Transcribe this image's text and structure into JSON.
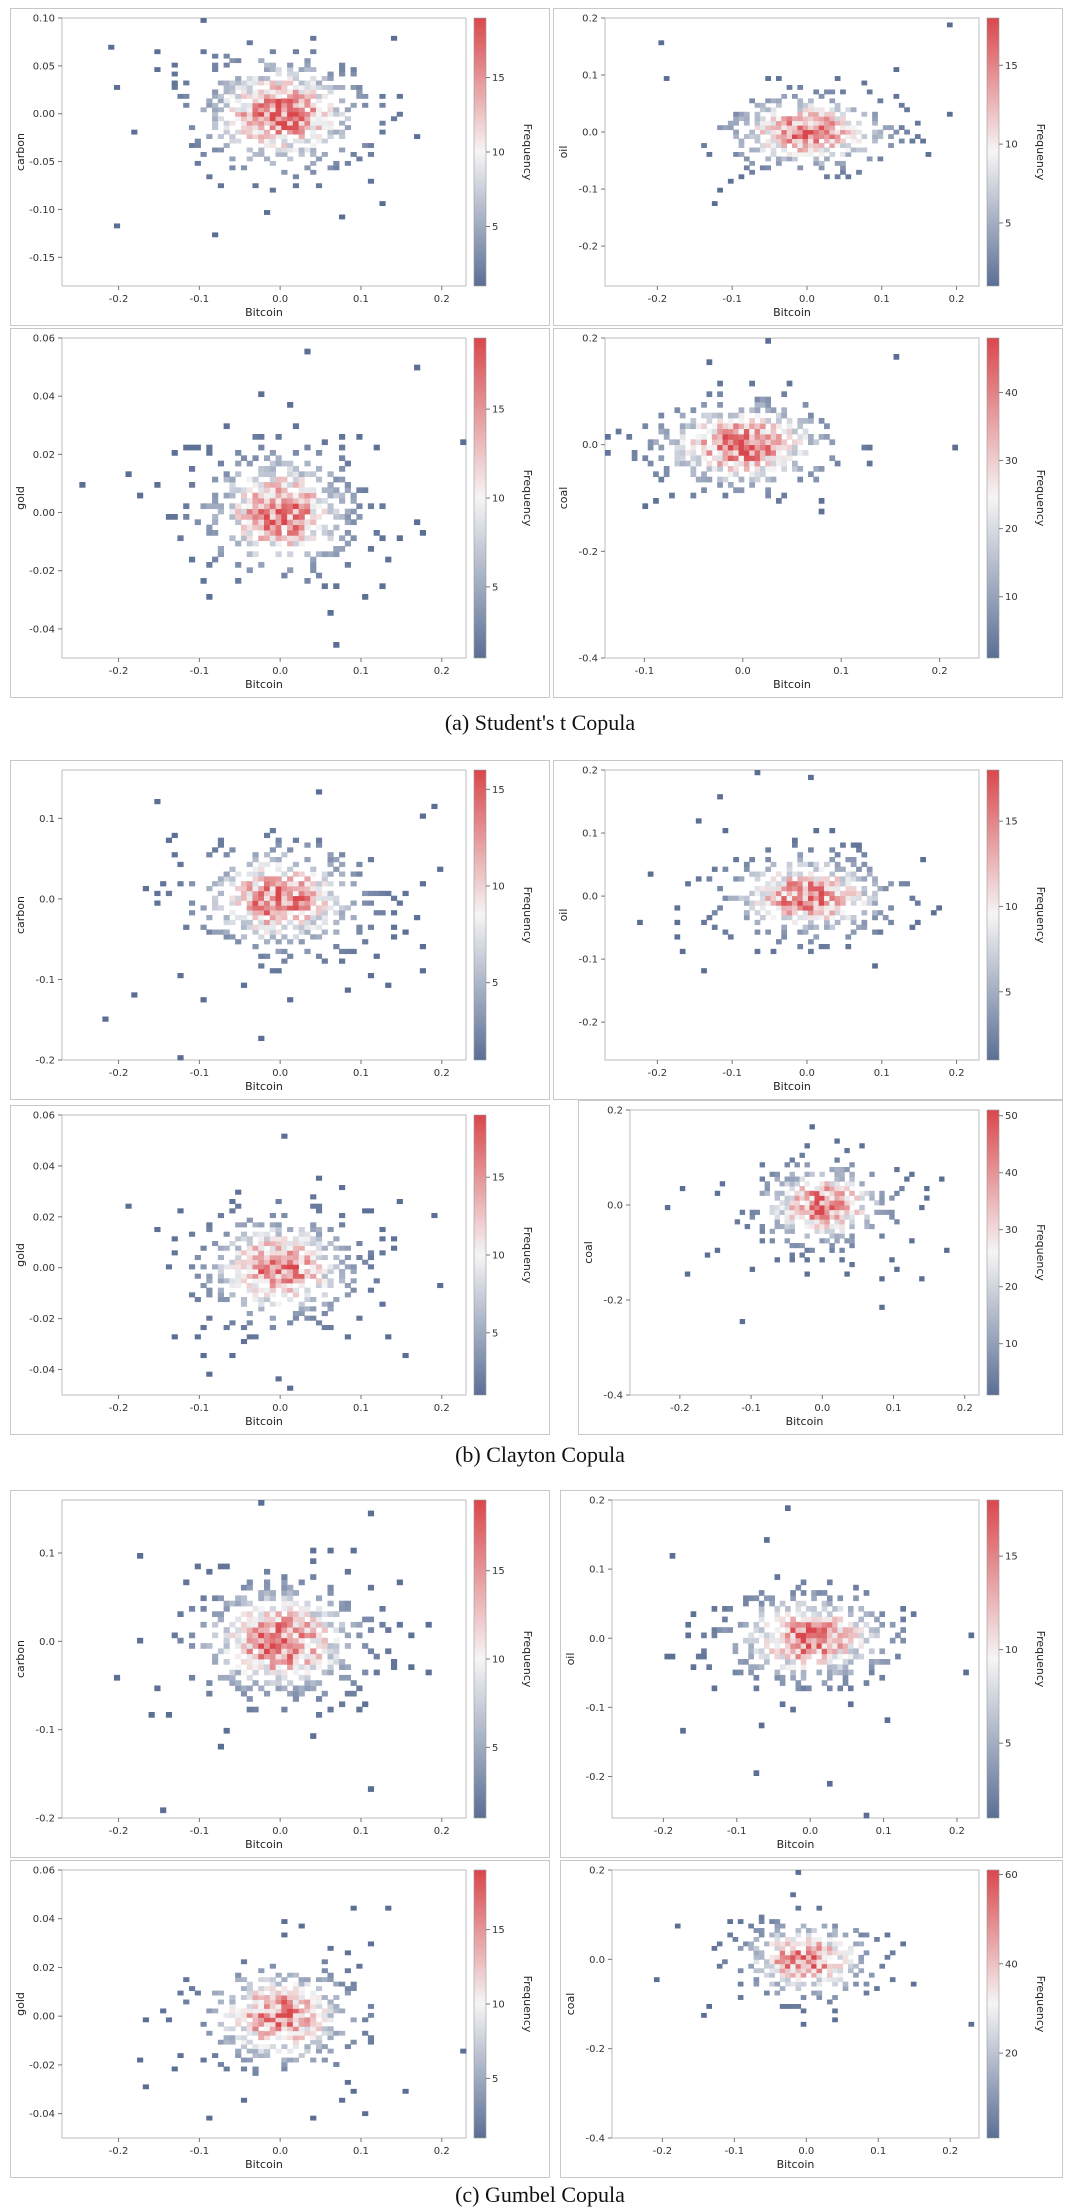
{
  "captions": {
    "a": "(a) Student's t Copula",
    "b": "(b) Clayton Copula",
    "c": "(c) Gumbel Copula"
  },
  "colors": {
    "low": "#5b6f95",
    "mid": "#f5f5f5",
    "high": "#d9474c"
  },
  "chart_data": [
    {
      "type": "heatmap",
      "group": "a",
      "xlabel": "Bitcoin",
      "ylabel": "carbon",
      "xlim": [
        -0.27,
        0.23
      ],
      "ylim": [
        -0.18,
        0.1
      ],
      "xticks": [
        "-0.2",
        "-0.1",
        "0.0",
        "0.1",
        "0.2"
      ],
      "yticks": [
        "-0.15",
        "-0.10",
        "-0.05",
        "0.00",
        "0.05",
        "0.10"
      ],
      "colorbar": {
        "label": "Frequency",
        "range": [
          1,
          19
        ],
        "ticks": [
          "5",
          "10",
          "15"
        ]
      },
      "sx": 0.055,
      "sy": 0.032,
      "peak": 19
    },
    {
      "type": "heatmap",
      "group": "a",
      "xlabel": "Bitcoin",
      "ylabel": "oil",
      "xlim": [
        -0.27,
        0.23
      ],
      "ylim": [
        -0.27,
        0.2
      ],
      "xticks": [
        "-0.2",
        "-0.1",
        "0.0",
        "0.1",
        "0.2"
      ],
      "yticks": [
        "-0.2",
        "-0.1",
        "0.0",
        "0.1",
        "0.2"
      ],
      "colorbar": {
        "label": "Frequency",
        "range": [
          1,
          18
        ],
        "ticks": [
          "5",
          "10",
          "15"
        ]
      },
      "sx": 0.06,
      "sy": 0.035,
      "peak": 18
    },
    {
      "type": "heatmap",
      "group": "a",
      "xlabel": "Bitcoin",
      "ylabel": "gold",
      "xlim": [
        -0.27,
        0.23
      ],
      "ylim": [
        -0.05,
        0.06
      ],
      "xticks": [
        "-0.2",
        "-0.1",
        "0.0",
        "0.1",
        "0.2"
      ],
      "yticks": [
        "-0.04",
        "-0.02",
        "0.00",
        "0.02",
        "0.04",
        "0.06"
      ],
      "colorbar": {
        "label": "Frequency",
        "range": [
          1,
          19
        ],
        "ticks": [
          "5",
          "10",
          "15"
        ]
      },
      "sx": 0.05,
      "sy": 0.011,
      "peak": 19
    },
    {
      "type": "heatmap",
      "group": "a",
      "xlabel": "Bitcoin",
      "ylabel": "coal",
      "xlim": [
        -0.14,
        0.24
      ],
      "ylim": [
        -0.4,
        0.2
      ],
      "xticks": [
        "-0.1",
        "0.0",
        "0.1",
        "0.2"
      ],
      "yticks": [
        "-0.4",
        "-0.2",
        "0.0",
        "0.2"
      ],
      "colorbar": {
        "label": "Frequency",
        "range": [
          1,
          48
        ],
        "ticks": [
          "10",
          "20",
          "30",
          "40"
        ]
      },
      "sx": 0.05,
      "sy": 0.045,
      "peak": 48
    },
    {
      "type": "heatmap",
      "group": "b",
      "xlabel": "Bitcoin",
      "ylabel": "carbon",
      "xlim": [
        -0.27,
        0.23
      ],
      "ylim": [
        -0.2,
        0.16
      ],
      "xticks": [
        "-0.2",
        "-0.1",
        "0.0",
        "0.1",
        "0.2"
      ],
      "yticks": [
        "-0.2",
        "-0.1",
        "0.0",
        "0.1"
      ],
      "colorbar": {
        "label": "Frequency",
        "range": [
          1,
          16
        ],
        "ticks": [
          "5",
          "10",
          "15"
        ]
      },
      "sx": 0.055,
      "sy": 0.035,
      "peak": 16
    },
    {
      "type": "heatmap",
      "group": "b",
      "xlabel": "Bitcoin",
      "ylabel": "oil",
      "xlim": [
        -0.27,
        0.23
      ],
      "ylim": [
        -0.26,
        0.2
      ],
      "xticks": [
        "-0.2",
        "-0.1",
        "0.0",
        "0.1",
        "0.2"
      ],
      "yticks": [
        "-0.2",
        "-0.1",
        "0.0",
        "0.1",
        "0.2"
      ],
      "colorbar": {
        "label": "Frequency",
        "range": [
          1,
          18
        ],
        "ticks": [
          "5",
          "10",
          "15"
        ]
      },
      "sx": 0.06,
      "sy": 0.035,
      "peak": 18
    },
    {
      "type": "heatmap",
      "group": "b",
      "xlabel": "Bitcoin",
      "ylabel": "gold",
      "xlim": [
        -0.27,
        0.23
      ],
      "ylim": [
        -0.05,
        0.06
      ],
      "xticks": [
        "-0.2",
        "-0.1",
        "0.0",
        "0.1",
        "0.2"
      ],
      "yticks": [
        "-0.04",
        "-0.02",
        "0.00",
        "0.02",
        "0.04",
        "0.06"
      ],
      "colorbar": {
        "label": "Frequency",
        "range": [
          1,
          19
        ],
        "ticks": [
          "5",
          "10",
          "15"
        ]
      },
      "sx": 0.05,
      "sy": 0.011,
      "peak": 19
    },
    {
      "type": "heatmap",
      "group": "b",
      "xlabel": "Bitcoin",
      "ylabel": "coal",
      "xlim": [
        -0.27,
        0.22
      ],
      "ylim": [
        -0.4,
        0.2
      ],
      "xticks": [
        "-0.2",
        "-0.1",
        "0.0",
        "0.1",
        "0.2"
      ],
      "yticks": [
        "-0.4",
        "-0.2",
        "0.0",
        "0.2"
      ],
      "colorbar": {
        "label": "Frequency",
        "range": [
          1,
          51
        ],
        "ticks": [
          "10",
          "20",
          "30",
          "40",
          "50"
        ]
      },
      "sx": 0.05,
      "sy": 0.045,
      "peak": 51
    },
    {
      "type": "heatmap",
      "group": "c",
      "xlabel": "Bitcoin",
      "ylabel": "carbon",
      "xlim": [
        -0.27,
        0.23
      ],
      "ylim": [
        -0.2,
        0.16
      ],
      "xticks": [
        "-0.2",
        "-0.1",
        "0.0",
        "0.1",
        "0.2"
      ],
      "yticks": [
        "-0.2",
        "-0.1",
        "0.0",
        "0.1"
      ],
      "colorbar": {
        "label": "Frequency",
        "range": [
          1,
          19
        ],
        "ticks": [
          "5",
          "10",
          "15"
        ]
      },
      "sx": 0.055,
      "sy": 0.035,
      "peak": 19
    },
    {
      "type": "heatmap",
      "group": "c",
      "xlabel": "Bitcoin",
      "ylabel": "oil",
      "xlim": [
        -0.27,
        0.23
      ],
      "ylim": [
        -0.26,
        0.2
      ],
      "xticks": [
        "-0.2",
        "-0.1",
        "0.0",
        "0.1",
        "0.2"
      ],
      "yticks": [
        "-0.2",
        "-0.1",
        "0.0",
        "0.1",
        "0.2"
      ],
      "colorbar": {
        "label": "Frequency",
        "range": [
          1,
          18
        ],
        "ticks": [
          "5",
          "10",
          "15"
        ]
      },
      "sx": 0.06,
      "sy": 0.035,
      "peak": 18
    },
    {
      "type": "heatmap",
      "group": "c",
      "xlabel": "Bitcoin",
      "ylabel": "gold",
      "xlim": [
        -0.27,
        0.23
      ],
      "ylim": [
        -0.05,
        0.06
      ],
      "xticks": [
        "-0.2",
        "-0.1",
        "0.0",
        "0.1",
        "0.2"
      ],
      "yticks": [
        "-0.04",
        "-0.02",
        "0.00",
        "0.02",
        "0.04",
        "0.06"
      ],
      "colorbar": {
        "label": "Frequency",
        "range": [
          1,
          19
        ],
        "ticks": [
          "5",
          "10",
          "15"
        ]
      },
      "sx": 0.05,
      "sy": 0.011,
      "peak": 19
    },
    {
      "type": "heatmap",
      "group": "c",
      "xlabel": "Bitcoin",
      "ylabel": "coal",
      "xlim": [
        -0.27,
        0.24
      ],
      "ylim": [
        -0.4,
        0.2
      ],
      "xticks": [
        "-0.2",
        "-0.1",
        "0.0",
        "0.1",
        "0.2"
      ],
      "yticks": [
        "-0.4",
        "-0.2",
        "0.0",
        "0.2"
      ],
      "colorbar": {
        "label": "Frequency",
        "range": [
          1,
          61
        ],
        "ticks": [
          "20",
          "40",
          "60"
        ]
      },
      "sx": 0.05,
      "sy": 0.045,
      "peak": 61
    }
  ]
}
